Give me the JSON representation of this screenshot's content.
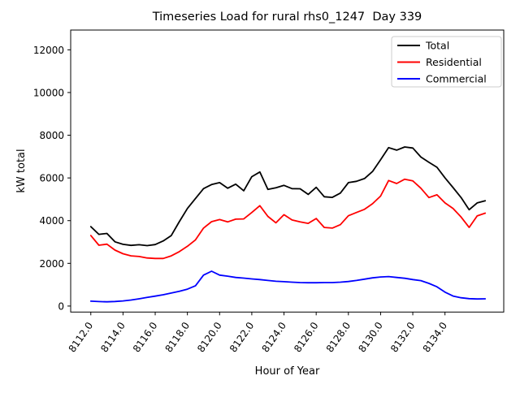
{
  "chart_data": {
    "type": "line",
    "title": "Timeseries Load for rural rhs0_1247  Day 339",
    "xlabel": "Hour of Year",
    "ylabel": "kW total",
    "grid": false,
    "legend_position": "upper right",
    "xlim": [
      8110.75,
      8137.65
    ],
    "ylim": [
      -281,
      12926
    ],
    "x_ticks": {
      "values": [
        8112,
        8114,
        8116,
        8118,
        8120,
        8122,
        8124,
        8126,
        8128,
        8130,
        8132,
        8134
      ],
      "labels": [
        "8112.0",
        "8114.0",
        "8116.0",
        "8118.0",
        "8120.0",
        "8122.0",
        "8124.0",
        "8126.0",
        "8128.0",
        "8130.0",
        "8132.0",
        "8134.0"
      ]
    },
    "y_ticks": {
      "values": [
        0,
        2000,
        4000,
        6000,
        8000,
        10000,
        12000
      ],
      "labels": [
        "0",
        "2000",
        "4000",
        "6000",
        "8000",
        "10000",
        "12000"
      ]
    },
    "x": [
      8112.0,
      8112.5,
      8113.0,
      8113.5,
      8114.0,
      8114.5,
      8115.0,
      8115.5,
      8116.0,
      8116.5,
      8117.0,
      8117.5,
      8118.0,
      8118.5,
      8119.0,
      8119.5,
      8120.0,
      8120.5,
      8121.0,
      8121.5,
      8122.0,
      8122.5,
      8123.0,
      8123.5,
      8124.0,
      8124.5,
      8125.0,
      8125.5,
      8126.0,
      8126.5,
      8127.0,
      8127.5,
      8128.0,
      8128.5,
      8129.0,
      8129.5,
      8130.0,
      8130.5,
      8131.0,
      8131.5,
      8132.0,
      8132.5,
      8133.0,
      8133.5,
      8134.0,
      8134.5,
      8135.0,
      8135.5,
      8136.0,
      8136.5
    ],
    "series": [
      {
        "name": "Total",
        "color": "#000000",
        "values": [
          3720,
          3360,
          3400,
          3010,
          2890,
          2840,
          2870,
          2830,
          2880,
          3050,
          3300,
          3950,
          4570,
          5040,
          5500,
          5690,
          5780,
          5520,
          5710,
          5400,
          6060,
          6280,
          5460,
          5540,
          5650,
          5500,
          5490,
          5230,
          5560,
          5120,
          5090,
          5290,
          5780,
          5840,
          5970,
          6300,
          6850,
          7420,
          7300,
          7450,
          7400,
          6980,
          6730,
          6500,
          6000,
          5550,
          5080,
          4510,
          4830,
          4930
        ]
      },
      {
        "name": "Residential",
        "color": "#ff0000",
        "values": [
          3300,
          2850,
          2900,
          2620,
          2450,
          2350,
          2320,
          2250,
          2230,
          2230,
          2350,
          2550,
          2800,
          3100,
          3650,
          3950,
          4050,
          3940,
          4070,
          4080,
          4380,
          4700,
          4200,
          3900,
          4280,
          4030,
          3940,
          3870,
          4100,
          3680,
          3650,
          3810,
          4230,
          4380,
          4530,
          4790,
          5150,
          5880,
          5740,
          5940,
          5860,
          5520,
          5080,
          5210,
          4830,
          4570,
          4170,
          3680,
          4220,
          4350
        ]
      },
      {
        "name": "Commercial",
        "color": "#0000ff",
        "values": [
          230,
          210,
          200,
          215,
          240,
          280,
          340,
          405,
          465,
          530,
          610,
          690,
          790,
          950,
          1450,
          1630,
          1450,
          1400,
          1340,
          1310,
          1270,
          1240,
          1200,
          1160,
          1140,
          1120,
          1100,
          1090,
          1090,
          1100,
          1100,
          1120,
          1150,
          1200,
          1260,
          1320,
          1360,
          1380,
          1340,
          1300,
          1240,
          1190,
          1060,
          900,
          650,
          470,
          390,
          345,
          330,
          340
        ]
      }
    ]
  },
  "legend": {
    "entries": [
      {
        "label": "Total"
      },
      {
        "label": "Residential"
      },
      {
        "label": "Commercial"
      }
    ]
  }
}
